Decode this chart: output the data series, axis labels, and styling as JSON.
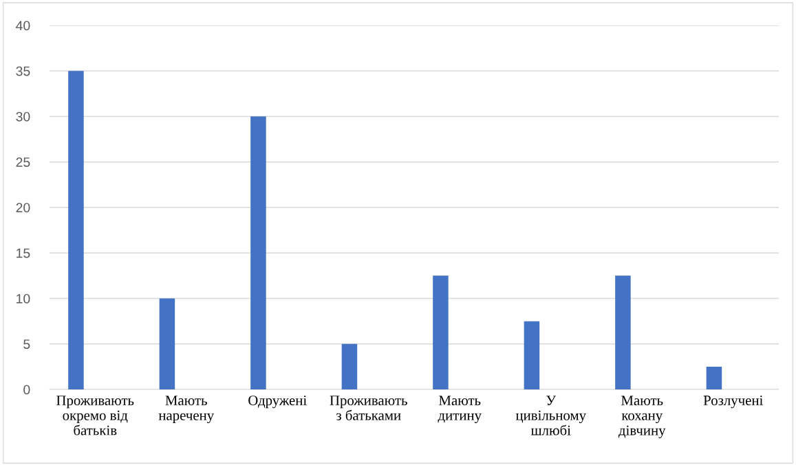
{
  "chart_data": {
    "type": "bar",
    "categories": [
      "Проживають\nокремо від\nбатьків",
      "Мають\nнаречену",
      "Одружені",
      "Проживають\nз батьками",
      "Мають\nдитину",
      "У\nцивільному\nшлюбі",
      "Мають\nкохану\nдівчину",
      "Розлучені"
    ],
    "values": [
      35,
      10,
      30,
      5,
      12.5,
      7.5,
      12.5,
      2.5
    ],
    "color": "#4472c4",
    "ylim": [
      0,
      40
    ],
    "yticks": [
      0,
      5,
      10,
      15,
      20,
      25,
      30,
      35,
      40
    ],
    "grid": "y",
    "legend": false
  }
}
